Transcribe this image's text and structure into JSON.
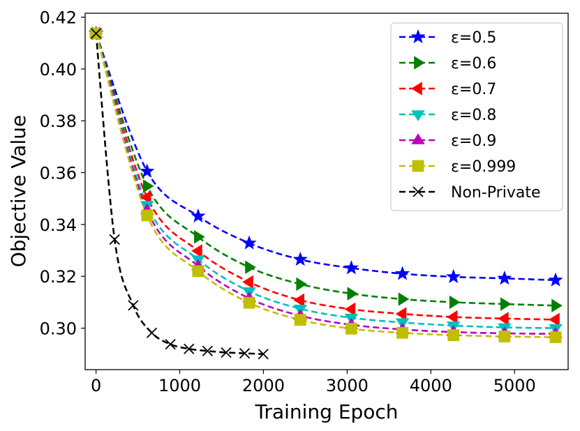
{
  "chart_data": {
    "type": "line",
    "xlabel": "Training Epoch",
    "ylabel": "Objective Value",
    "xlim": [
      -130,
      5640
    ],
    "ylim": [
      0.284,
      0.4215
    ],
    "xticks": [
      0,
      1000,
      2000,
      3000,
      4000,
      5000
    ],
    "yticks": [
      0.3,
      0.32,
      0.34,
      0.36,
      0.38,
      0.4,
      0.42
    ],
    "ytick_labels": [
      "0.30",
      "0.32",
      "0.34",
      "0.36",
      "0.38",
      "0.40",
      "0.42"
    ],
    "grid": false,
    "legend_position": "top-right",
    "series": [
      {
        "name": "ε=0.5",
        "color": "#0000ff",
        "marker": "star",
        "x": [
          0,
          610,
          1220,
          1830,
          2440,
          3050,
          3660,
          4270,
          4880,
          5490
        ],
        "y": [
          0.4137,
          0.3605,
          0.3432,
          0.3328,
          0.3265,
          0.3232,
          0.321,
          0.3198,
          0.3192,
          0.3185
        ]
      },
      {
        "name": "ε=0.6",
        "color": "#007f00",
        "marker": "triangle-right",
        "x": [
          0,
          610,
          1220,
          1830,
          2440,
          3050,
          3660,
          4270,
          4880,
          5490
        ],
        "y": [
          0.4137,
          0.3548,
          0.3352,
          0.3235,
          0.317,
          0.3133,
          0.3112,
          0.31,
          0.3093,
          0.3087
        ]
      },
      {
        "name": "ε=0.7",
        "color": "#ff0000",
        "marker": "triangle-left",
        "x": [
          0,
          610,
          1220,
          1830,
          2440,
          3050,
          3660,
          4270,
          4880,
          5490
        ],
        "y": [
          0.4137,
          0.3505,
          0.3298,
          0.3178,
          0.3108,
          0.3073,
          0.3055,
          0.3043,
          0.3037,
          0.3033
        ]
      },
      {
        "name": "ε=0.8",
        "color": "#00bfbf",
        "marker": "triangle-down",
        "x": [
          0,
          610,
          1220,
          1830,
          2440,
          3050,
          3660,
          4270,
          4880,
          5490
        ],
        "y": [
          0.4137,
          0.3475,
          0.3265,
          0.3142,
          0.3075,
          0.304,
          0.3022,
          0.301,
          0.3003,
          0.3
        ]
      },
      {
        "name": "ε=0.9",
        "color": "#bf00bf",
        "marker": "triangle-up",
        "x": [
          0,
          610,
          1220,
          1830,
          2440,
          3050,
          3660,
          4270,
          4880,
          5490
        ],
        "y": [
          0.4137,
          0.3455,
          0.324,
          0.3115,
          0.3048,
          0.3013,
          0.2995,
          0.2985,
          0.298,
          0.2978
        ]
      },
      {
        "name": "ε=0.999",
        "color": "#bfbf00",
        "marker": "square",
        "x": [
          0,
          610,
          1220,
          1830,
          2440,
          3050,
          3660,
          4270,
          4880,
          5490
        ],
        "y": [
          0.4137,
          0.3435,
          0.322,
          0.3098,
          0.3032,
          0.2998,
          0.2982,
          0.2973,
          0.2968,
          0.2965
        ]
      },
      {
        "name": "Non-Private",
        "color": "#000000",
        "marker": "x",
        "x": [
          0,
          222,
          444,
          666,
          888,
          1110,
          1332,
          1554,
          1776,
          1998
        ],
        "y": [
          0.4137,
          0.3342,
          0.3088,
          0.2982,
          0.2938,
          0.292,
          0.2912,
          0.2906,
          0.2903,
          0.29
        ]
      }
    ]
  }
}
